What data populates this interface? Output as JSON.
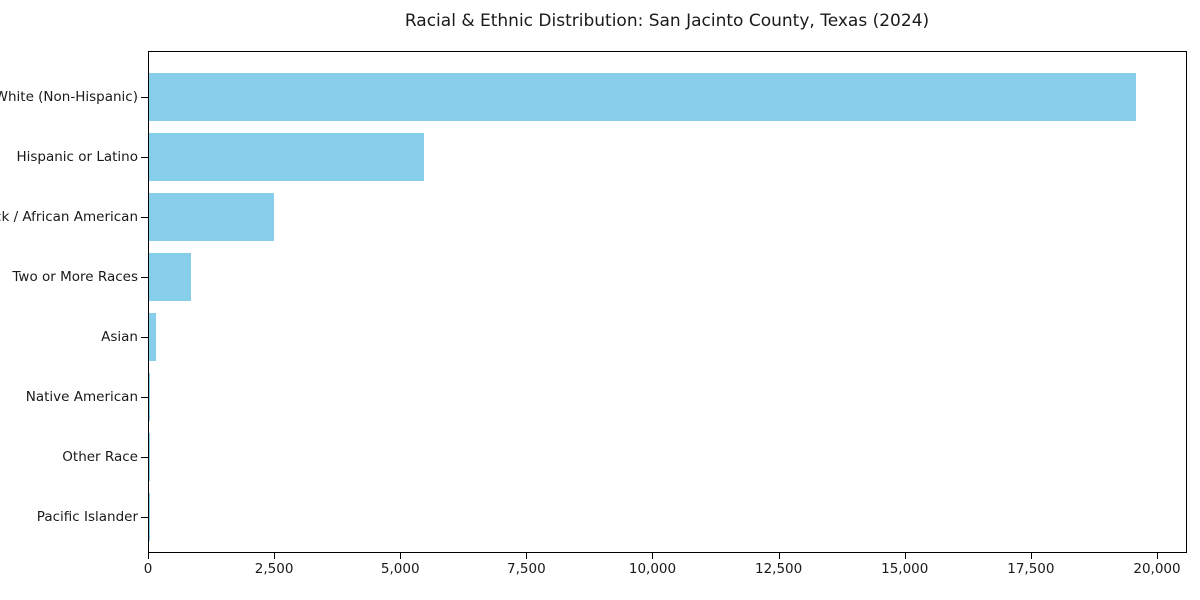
{
  "chart_data": {
    "type": "bar",
    "orientation": "horizontal",
    "title": "Racial & Ethnic Distribution: San Jacinto County, Texas (2024)",
    "categories": [
      "White (Non-Hispanic)",
      "Hispanic or Latino",
      "Black / African American",
      "Two or More Races",
      "Asian",
      "Native American",
      "Other Race",
      "Pacific Islander"
    ],
    "values": [
      19580,
      5450,
      2480,
      830,
      130,
      10,
      6,
      3
    ],
    "xlabel": "",
    "ylabel": "",
    "xlim": [
      0,
      20575
    ],
    "x_ticks": {
      "values": [
        0,
        2500,
        5000,
        7500,
        10000,
        12500,
        15000,
        17500,
        20000
      ],
      "labels": [
        "0",
        "2,500",
        "5,000",
        "7,500",
        "10,000",
        "12,500",
        "15,000",
        "17,500",
        "20,000"
      ]
    },
    "bar_color": "#87CEEB",
    "text_color": "#1a1a1a",
    "grid": false,
    "legend_position": "none"
  }
}
